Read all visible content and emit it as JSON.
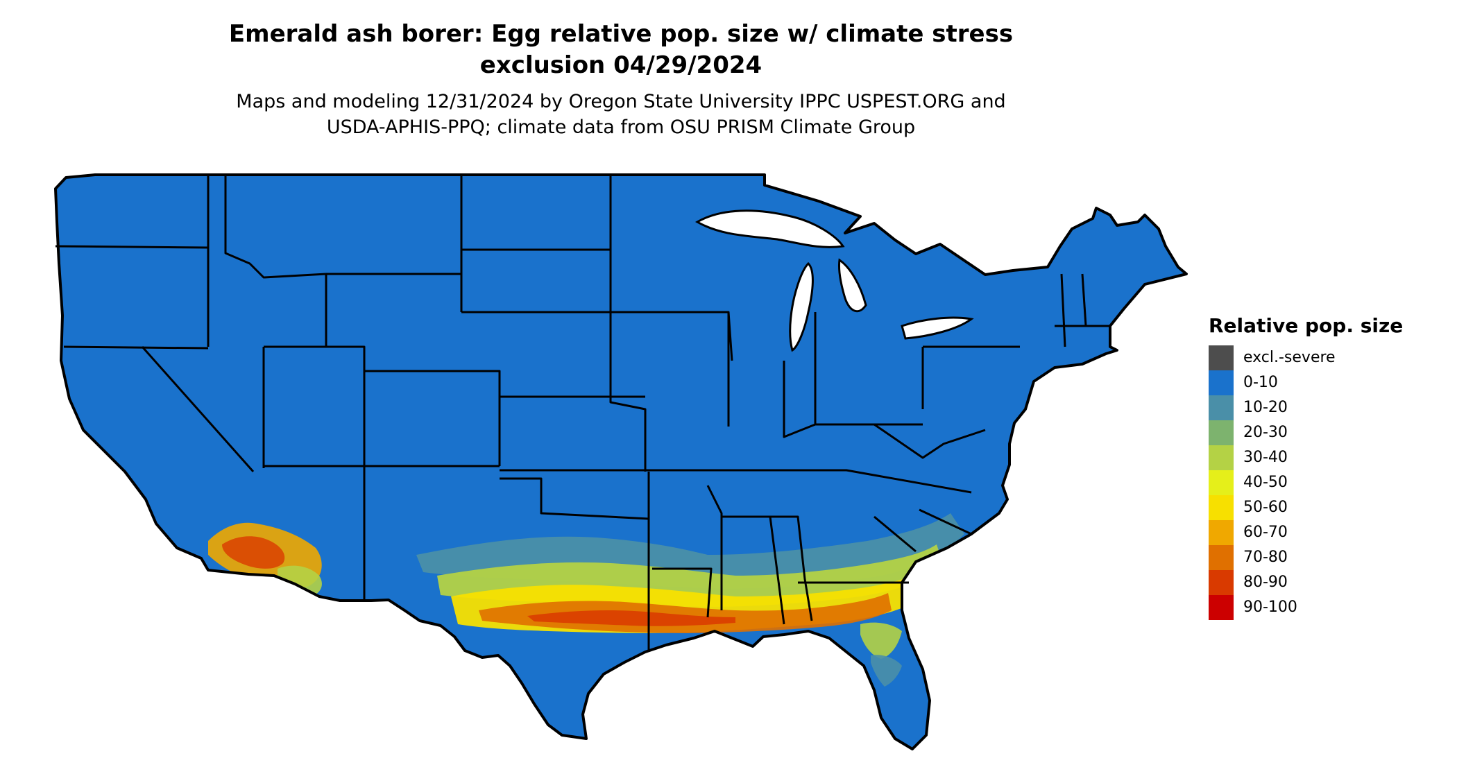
{
  "header": {
    "title_line1": "Emerald ash borer: Egg relative pop. size w/ climate stress",
    "title_line2": "exclusion 04/29/2024",
    "subtitle_line1": "Maps and modeling 12/31/2024 by Oregon State University IPPC USPEST.ORG and",
    "subtitle_line2": "USDA-APHIS-PPQ; climate data from OSU PRISM Climate Group"
  },
  "legend": {
    "title": "Relative pop. size",
    "items": [
      {
        "label": "excl.-severe",
        "color": "#4d4d4d"
      },
      {
        "label": "0-10",
        "color": "#1a72cc"
      },
      {
        "label": "10-20",
        "color": "#4a8fa8"
      },
      {
        "label": "20-30",
        "color": "#7db36e"
      },
      {
        "label": "30-40",
        "color": "#b4d245"
      },
      {
        "label": "40-50",
        "color": "#e5ef1a"
      },
      {
        "label": "50-60",
        "color": "#f7e000"
      },
      {
        "label": "60-70",
        "color": "#f0a800"
      },
      {
        "label": "70-80",
        "color": "#e07000"
      },
      {
        "label": "80-90",
        "color": "#d93a00"
      },
      {
        "label": "90-100",
        "color": "#cc0000"
      }
    ]
  },
  "map": {
    "region": "conterminous-united-states",
    "base_color": "#1a72cc",
    "border_color": "#000000"
  }
}
